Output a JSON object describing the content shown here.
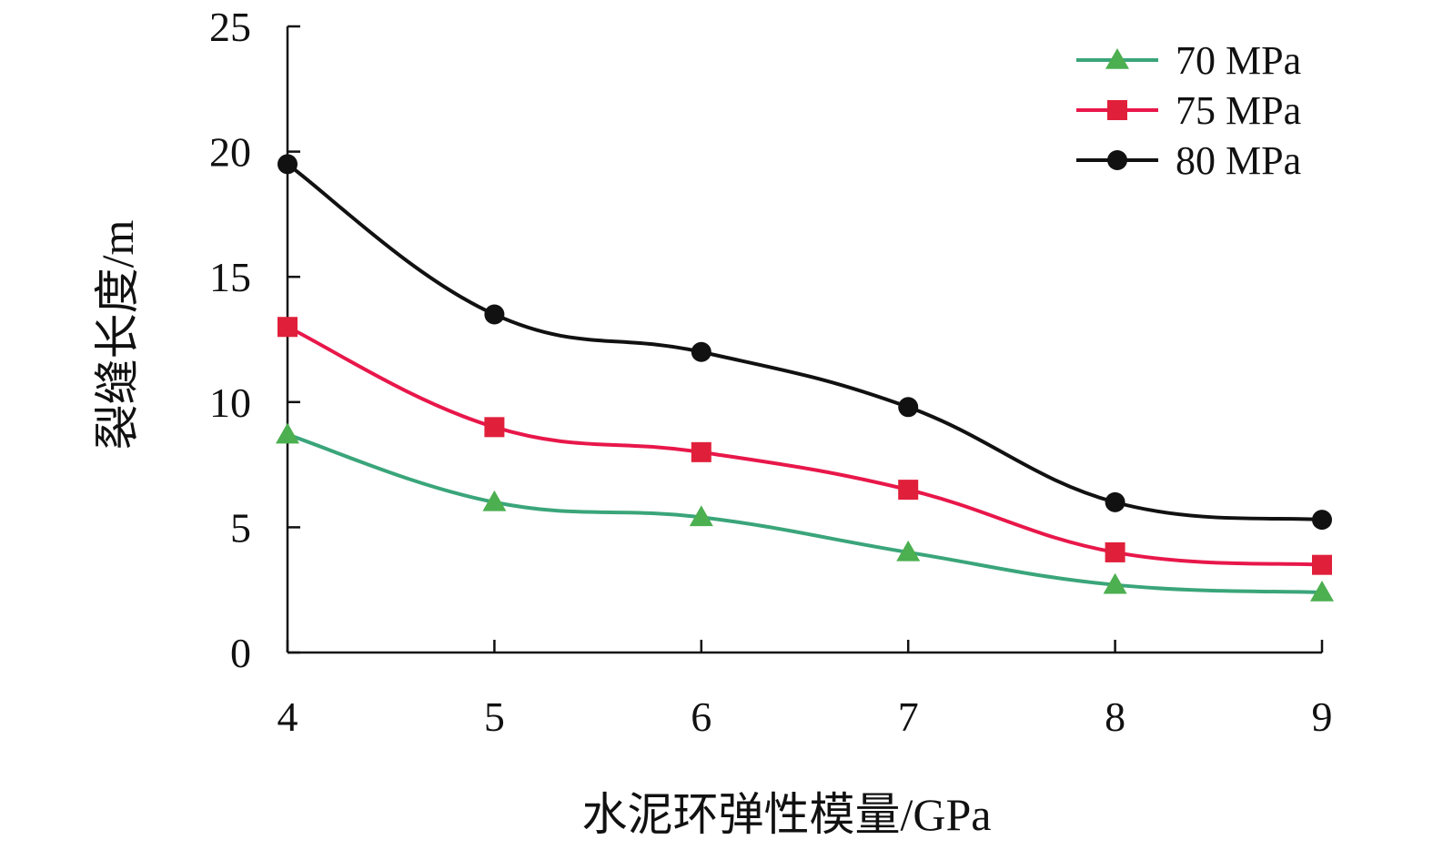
{
  "chart_data": {
    "type": "line",
    "title": "",
    "xlabel": "水泥环弹性模量/GPa",
    "ylabel": "裂缝长度/m",
    "x": [
      4,
      5,
      6,
      7,
      8,
      9
    ],
    "xlim": [
      4,
      9
    ],
    "ylim": [
      0,
      25
    ],
    "xticks": [
      "4",
      "5",
      "6",
      "7",
      "8",
      "9"
    ],
    "yticks": [
      "0",
      "5",
      "10",
      "15",
      "20",
      "25"
    ],
    "grid": false,
    "legend_position": "top-right",
    "series": [
      {
        "name": "70 MPa",
        "marker": "triangle",
        "color": "#3aa57a",
        "marker_color": "#4caf50",
        "values": [
          8.7,
          6.0,
          5.4,
          4.0,
          2.7,
          2.4
        ]
      },
      {
        "name": "75 MPa",
        "marker": "square",
        "color": "#e8174a",
        "marker_color": "#e0203a",
        "values": [
          13.0,
          9.0,
          8.0,
          6.5,
          4.0,
          3.5
        ]
      },
      {
        "name": "80 MPa",
        "marker": "circle",
        "color": "#111111",
        "marker_color": "#111111",
        "values": [
          19.5,
          13.5,
          12.0,
          9.8,
          6.0,
          5.3
        ]
      }
    ]
  }
}
